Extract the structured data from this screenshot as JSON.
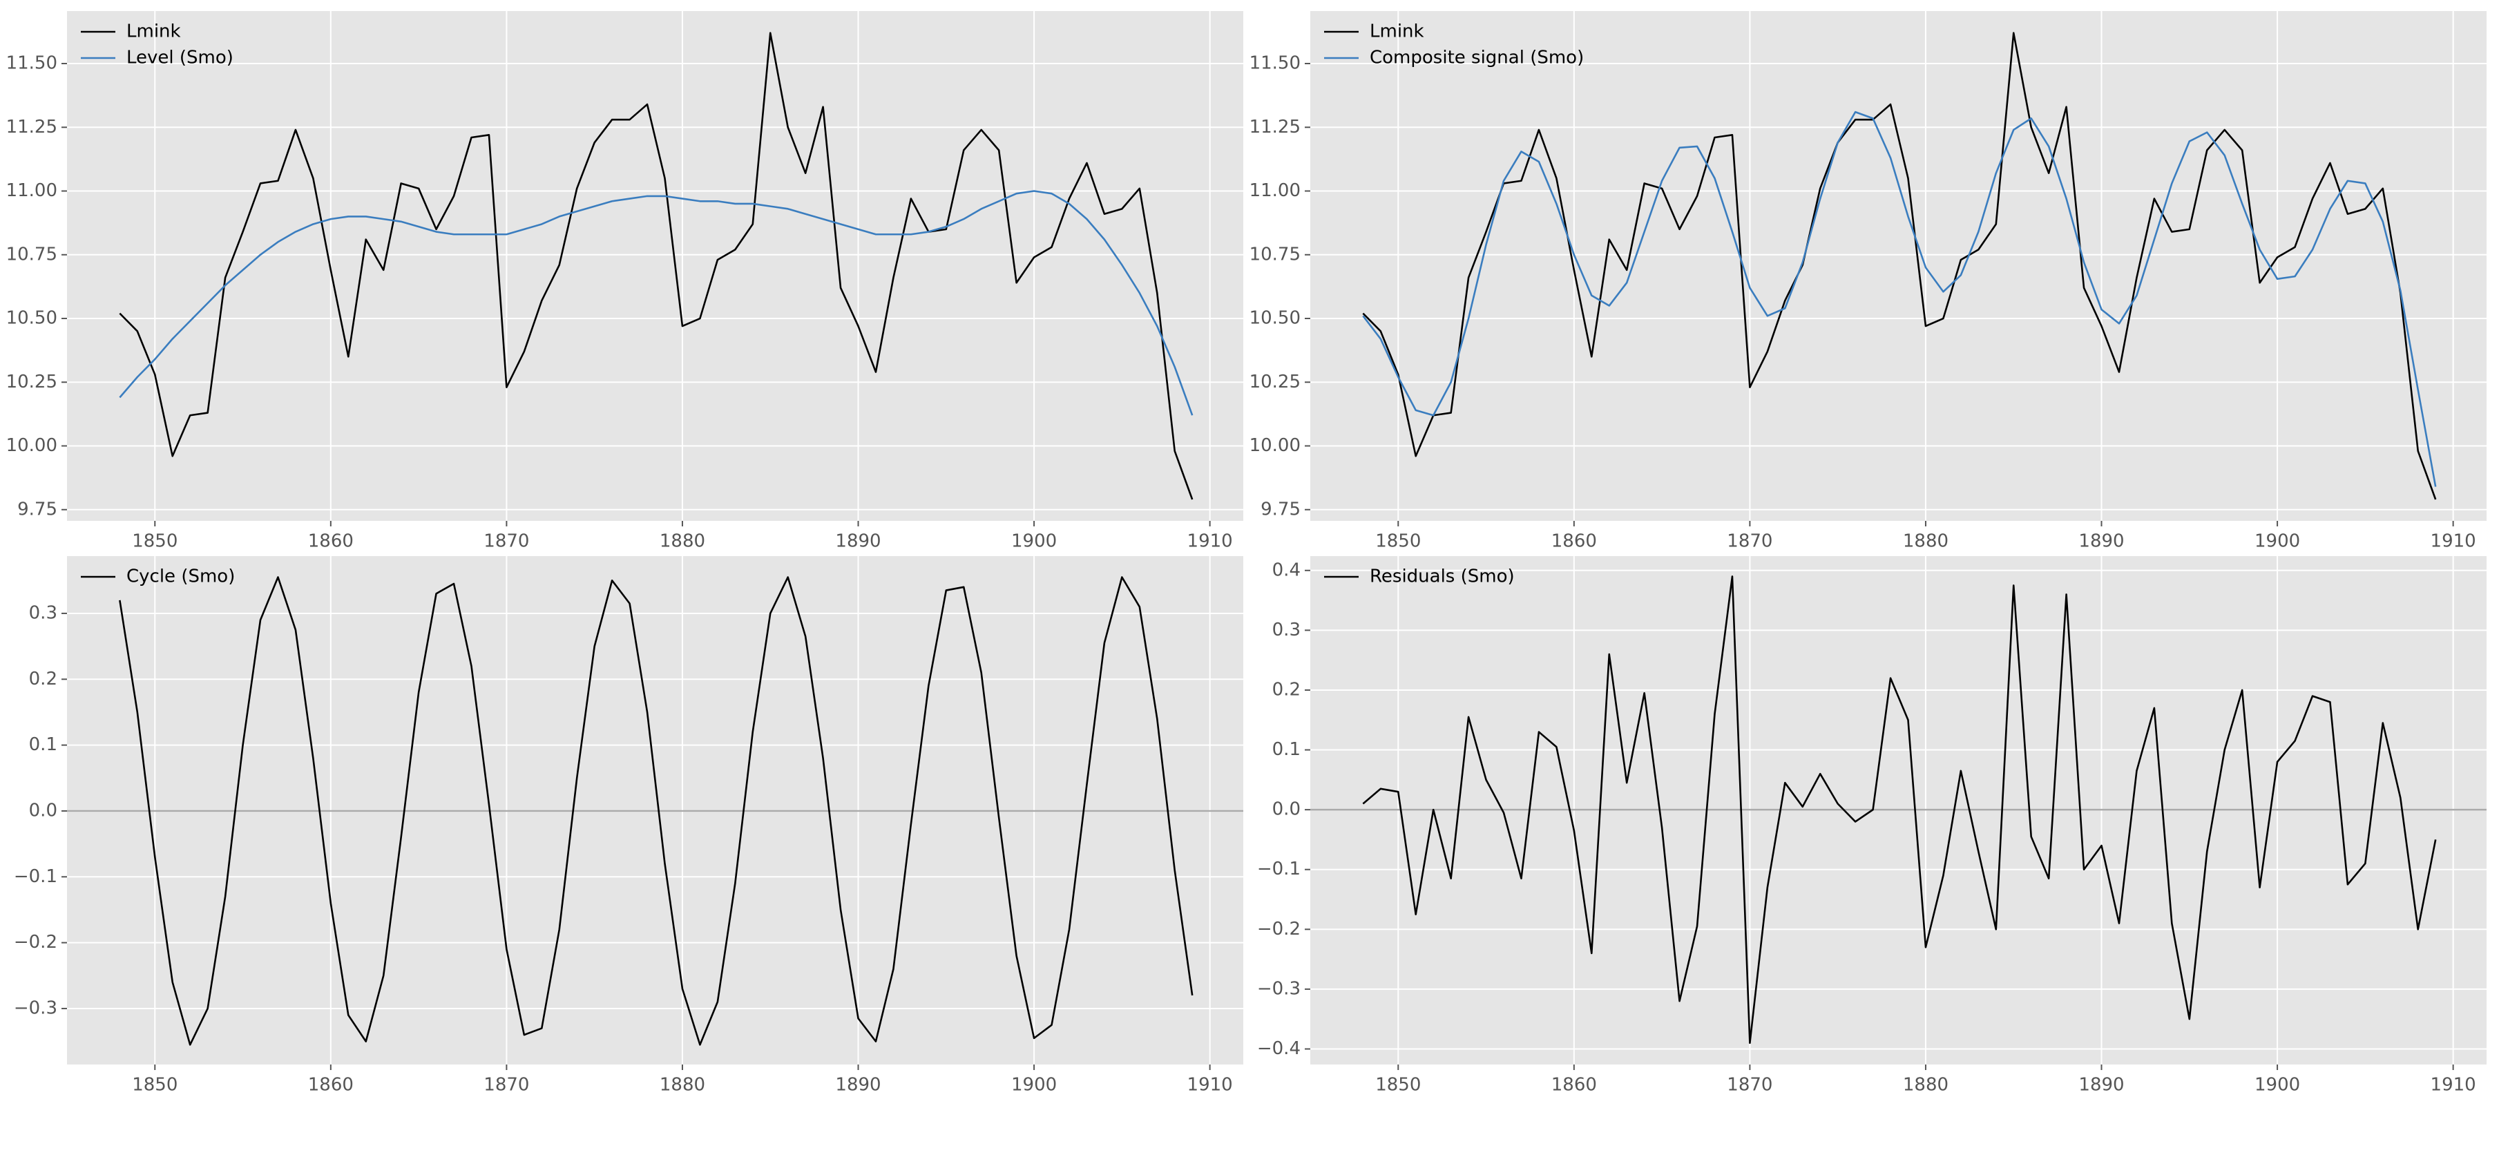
{
  "chart_data": [
    {
      "type": "line",
      "legend": "upper left",
      "grid": true,
      "background": "#e5e5e5",
      "x": [
        1848,
        1849,
        1850,
        1851,
        1852,
        1853,
        1854,
        1855,
        1856,
        1857,
        1858,
        1859,
        1860,
        1861,
        1862,
        1863,
        1864,
        1865,
        1866,
        1867,
        1868,
        1869,
        1870,
        1871,
        1872,
        1873,
        1874,
        1875,
        1876,
        1877,
        1878,
        1879,
        1880,
        1881,
        1882,
        1883,
        1884,
        1885,
        1886,
        1887,
        1888,
        1889,
        1890,
        1891,
        1892,
        1893,
        1894,
        1895,
        1896,
        1897,
        1898,
        1899,
        1900,
        1901,
        1902,
        1903,
        1904,
        1905,
        1906,
        1907,
        1908,
        1909
      ],
      "xlim": [
        1845,
        1911.9
      ],
      "xticks": [
        1850,
        1860,
        1870,
        1880,
        1890,
        1900,
        1910
      ],
      "ylim": [
        9.706,
        11.706
      ],
      "yticks": [
        9.75,
        {
          "value": 10,
          "label": "10.00"
        },
        10.25,
        {
          "value": 10.5,
          "label": "10.50"
        },
        10.75,
        {
          "value": 11,
          "label": "11.00"
        },
        11.25,
        {
          "value": 11.5,
          "label": "11.50"
        }
      ],
      "series": [
        {
          "name": "Lmink",
          "color": "#000000",
          "values": [
            10.52,
            10.45,
            10.28,
            9.96,
            10.12,
            10.13,
            10.66,
            10.84,
            11.03,
            11.04,
            11.24,
            11.05,
            10.69,
            10.35,
            10.81,
            10.69,
            11.03,
            11.01,
            10.85,
            10.98,
            11.21,
            11.22,
            10.23,
            10.37,
            10.57,
            10.71,
            11.01,
            11.19,
            11.28,
            11.28,
            11.34,
            11.05,
            10.47,
            10.5,
            10.73,
            10.77,
            10.87,
            11.62,
            11.25,
            11.07,
            11.33,
            10.62,
            10.47,
            10.29,
            10.66,
            10.97,
            10.84,
            10.85,
            11.16,
            11.24,
            11.16,
            10.64,
            10.74,
            10.78,
            10.97,
            11.11,
            10.91,
            10.93,
            11.01,
            10.6,
            9.98,
            9.79
          ]
        },
        {
          "name": "Level (Smo)",
          "color": "#3a7dbf",
          "values": [
            10.19,
            10.27,
            10.34,
            10.42,
            10.49,
            10.56,
            10.63,
            10.69,
            10.75,
            10.8,
            10.84,
            10.87,
            10.89,
            10.9,
            10.9,
            10.89,
            10.88,
            10.86,
            10.84,
            10.83,
            10.83,
            10.83,
            10.83,
            10.85,
            10.87,
            10.9,
            10.92,
            10.94,
            10.96,
            10.97,
            10.98,
            10.98,
            10.97,
            10.96,
            10.96,
            10.95,
            10.95,
            10.94,
            10.93,
            10.91,
            10.89,
            10.87,
            10.85,
            10.83,
            10.83,
            10.83,
            10.84,
            10.86,
            10.89,
            10.93,
            10.96,
            10.99,
            11.0,
            10.99,
            10.95,
            10.89,
            10.81,
            10.71,
            10.6,
            10.47,
            10.31,
            10.12
          ]
        }
      ]
    },
    {
      "type": "line",
      "legend": "upper left",
      "grid": true,
      "background": "#e5e5e5",
      "x": [
        1848,
        1849,
        1850,
        1851,
        1852,
        1853,
        1854,
        1855,
        1856,
        1857,
        1858,
        1859,
        1860,
        1861,
        1862,
        1863,
        1864,
        1865,
        1866,
        1867,
        1868,
        1869,
        1870,
        1871,
        1872,
        1873,
        1874,
        1875,
        1876,
        1877,
        1878,
        1879,
        1880,
        1881,
        1882,
        1883,
        1884,
        1885,
        1886,
        1887,
        1888,
        1889,
        1890,
        1891,
        1892,
        1893,
        1894,
        1895,
        1896,
        1897,
        1898,
        1899,
        1900,
        1901,
        1902,
        1903,
        1904,
        1905,
        1906,
        1907,
        1908,
        1909
      ],
      "xlim": [
        1845,
        1911.9
      ],
      "xticks": [
        1850,
        1860,
        1870,
        1880,
        1890,
        1900,
        1910
      ],
      "ylim": [
        9.706,
        11.706
      ],
      "yticks": [
        9.75,
        {
          "value": 10,
          "label": "10.00"
        },
        10.25,
        {
          "value": 10.5,
          "label": "10.50"
        },
        10.75,
        {
          "value": 11,
          "label": "11.00"
        },
        11.25,
        {
          "value": 11.5,
          "label": "11.50"
        }
      ],
      "series": [
        {
          "name": "Lmink",
          "color": "#000000",
          "values": [
            10.52,
            10.45,
            10.28,
            9.96,
            10.12,
            10.13,
            10.66,
            10.84,
            11.03,
            11.04,
            11.24,
            11.05,
            10.69,
            10.35,
            10.81,
            10.69,
            11.03,
            11.01,
            10.85,
            10.98,
            11.21,
            11.22,
            10.23,
            10.37,
            10.57,
            10.71,
            11.01,
            11.19,
            11.28,
            11.28,
            11.34,
            11.05,
            10.47,
            10.5,
            10.73,
            10.77,
            10.87,
            11.62,
            11.25,
            11.07,
            11.33,
            10.62,
            10.47,
            10.29,
            10.66,
            10.97,
            10.84,
            10.85,
            11.16,
            11.24,
            11.16,
            10.64,
            10.74,
            10.78,
            10.97,
            11.11,
            10.91,
            10.93,
            11.01,
            10.6,
            9.98,
            9.79
          ]
        },
        {
          "name": "Composite signal (Smo)",
          "color": "#3a7dbf",
          "values": [
            10.51,
            10.42,
            10.27,
            10.14,
            10.12,
            10.25,
            10.5,
            10.79,
            11.04,
            11.155,
            11.115,
            10.95,
            10.75,
            10.59,
            10.55,
            10.64,
            10.84,
            11.04,
            11.17,
            11.175,
            11.05,
            10.84,
            10.62,
            10.51,
            10.54,
            10.72,
            10.97,
            11.19,
            11.31,
            11.285,
            11.13,
            10.9,
            10.7,
            10.605,
            10.67,
            10.84,
            11.07,
            11.24,
            11.285,
            11.175,
            10.97,
            10.72,
            10.535,
            10.48,
            10.59,
            10.81,
            11.03,
            11.195,
            11.23,
            11.14,
            10.95,
            10.77,
            10.655,
            10.665,
            10.77,
            10.93,
            11.04,
            11.03,
            10.88,
            10.61,
            10.22,
            9.84
          ]
        }
      ]
    },
    {
      "type": "line",
      "legend": "upper left",
      "grid": true,
      "background": "#e5e5e5",
      "zero_line": true,
      "x": [
        1848,
        1849,
        1850,
        1851,
        1852,
        1853,
        1854,
        1855,
        1856,
        1857,
        1858,
        1859,
        1860,
        1861,
        1862,
        1863,
        1864,
        1865,
        1866,
        1867,
        1868,
        1869,
        1870,
        1871,
        1872,
        1873,
        1874,
        1875,
        1876,
        1877,
        1878,
        1879,
        1880,
        1881,
        1882,
        1883,
        1884,
        1885,
        1886,
        1887,
        1888,
        1889,
        1890,
        1891,
        1892,
        1893,
        1894,
        1895,
        1896,
        1897,
        1898,
        1899,
        1900,
        1901,
        1902,
        1903,
        1904,
        1905,
        1906,
        1907,
        1908,
        1909
      ],
      "xlim": [
        1845,
        1911.9
      ],
      "xticks": [
        1850,
        1860,
        1870,
        1880,
        1890,
        1900,
        1910
      ],
      "ylim": [
        -0.385,
        0.387
      ],
      "yticks": [
        {
          "value": -0.3,
          "label": "−0.3"
        },
        {
          "value": -0.2,
          "label": "−0.2"
        },
        {
          "value": -0.1,
          "label": "−0.1"
        },
        {
          "value": 0,
          "label": "0.0"
        },
        0.1,
        0.2,
        0.3
      ],
      "series": [
        {
          "name": "Cycle (Smo)",
          "color": "#000000",
          "values": [
            0.32,
            0.15,
            -0.07,
            -0.26,
            -0.355,
            -0.3,
            -0.13,
            0.1,
            0.29,
            0.355,
            0.275,
            0.08,
            -0.14,
            -0.31,
            -0.35,
            -0.25,
            -0.04,
            0.18,
            0.33,
            0.345,
            0.22,
            0.01,
            -0.21,
            -0.34,
            -0.33,
            -0.18,
            0.05,
            0.25,
            0.35,
            0.315,
            0.15,
            -0.08,
            -0.27,
            -0.355,
            -0.29,
            -0.11,
            0.12,
            0.3,
            0.355,
            0.265,
            0.08,
            -0.15,
            -0.315,
            -0.35,
            -0.24,
            -0.02,
            0.19,
            0.335,
            0.34,
            0.21,
            -0.01,
            -0.22,
            -0.345,
            -0.325,
            -0.18,
            0.04,
            0.255,
            0.355,
            0.31,
            0.14,
            -0.09,
            -0.28
          ]
        }
      ]
    },
    {
      "type": "line",
      "legend": "upper left",
      "grid": true,
      "background": "#e5e5e5",
      "zero_line": true,
      "x": [
        1848,
        1849,
        1850,
        1851,
        1852,
        1853,
        1854,
        1855,
        1856,
        1857,
        1858,
        1859,
        1860,
        1861,
        1862,
        1863,
        1864,
        1865,
        1866,
        1867,
        1868,
        1869,
        1870,
        1871,
        1872,
        1873,
        1874,
        1875,
        1876,
        1877,
        1878,
        1879,
        1880,
        1881,
        1882,
        1883,
        1884,
        1885,
        1886,
        1887,
        1888,
        1889,
        1890,
        1891,
        1892,
        1893,
        1894,
        1895,
        1896,
        1897,
        1898,
        1899,
        1900,
        1901,
        1902,
        1903,
        1904,
        1905,
        1906,
        1907,
        1908,
        1909
      ],
      "xlim": [
        1845,
        1911.9
      ],
      "xticks": [
        1850,
        1860,
        1870,
        1880,
        1890,
        1900,
        1910
      ],
      "ylim": [
        -0.426,
        0.424
      ],
      "yticks": [
        {
          "value": -0.4,
          "label": "−0.4"
        },
        {
          "value": -0.3,
          "label": "−0.3"
        },
        {
          "value": -0.2,
          "label": "−0.2"
        },
        {
          "value": -0.1,
          "label": "−0.1"
        },
        {
          "value": 0,
          "label": "0.0"
        },
        0.1,
        0.2,
        0.3,
        0.4
      ],
      "series": [
        {
          "name": "Residuals (Smo)",
          "color": "#000000",
          "values": [
            0.01,
            0.035,
            0.03,
            -0.175,
            0.0,
            -0.115,
            0.155,
            0.05,
            -0.005,
            -0.115,
            0.13,
            0.105,
            -0.035,
            -0.24,
            0.26,
            0.045,
            0.195,
            -0.03,
            -0.32,
            -0.195,
            0.16,
            0.39,
            -0.39,
            -0.13,
            0.045,
            0.005,
            0.06,
            0.01,
            -0.02,
            0.0,
            0.22,
            0.15,
            -0.23,
            -0.11,
            0.065,
            -0.07,
            -0.2,
            0.375,
            -0.045,
            -0.115,
            0.36,
            -0.1,
            -0.06,
            -0.19,
            0.065,
            0.17,
            -0.19,
            -0.35,
            -0.07,
            0.1,
            0.2,
            -0.13,
            0.08,
            0.115,
            0.19,
            0.18,
            -0.125,
            -0.09,
            0.145,
            0.02,
            -0.2,
            -0.05
          ]
        }
      ]
    }
  ]
}
